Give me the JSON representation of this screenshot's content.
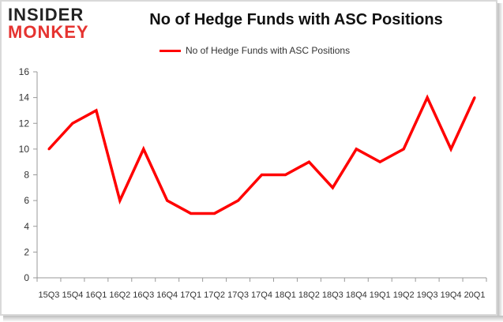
{
  "logo": {
    "line1": "INSIDER",
    "line2": "MONKEY"
  },
  "chart_data": {
    "type": "line",
    "title": "No of Hedge Funds with ASC Positions",
    "categories": [
      "15Q3",
      "15Q4",
      "16Q1",
      "16Q2",
      "16Q3",
      "16Q4",
      "17Q1",
      "17Q2",
      "17Q3",
      "17Q4",
      "18Q1",
      "18Q2",
      "18Q3",
      "18Q4",
      "19Q1",
      "19Q2",
      "19Q3",
      "19Q4",
      "20Q1"
    ],
    "x_tick_text": [
      "15Q3",
      "15Q4",
      "16Q1",
      "16Q2",
      "16Q3",
      "16Q4",
      "17Q1",
      "17Q2",
      "17Q3",
      "17Q4",
      "18Q1",
      "18Q2",
      "18Q3",
      "18Q4",
      "19Q1",
      "19Q2",
      "19Q3",
      "19Q4",
      "20Q1"
    ],
    "series": [
      {
        "name": "No of Hedge Funds with ASC Positions",
        "values": [
          10,
          12,
          13,
          6,
          10,
          6,
          5,
          5,
          6,
          8,
          8,
          9,
          7,
          10,
          9,
          10,
          14,
          10,
          14
        ]
      }
    ],
    "yticks": [
      0,
      2,
      4,
      6,
      8,
      10,
      12,
      14,
      16
    ],
    "ylim": [
      0,
      16
    ],
    "grid": false,
    "legend_position": "top-center",
    "colors": {
      "line": "#ff0000",
      "axis": "#999999"
    }
  }
}
